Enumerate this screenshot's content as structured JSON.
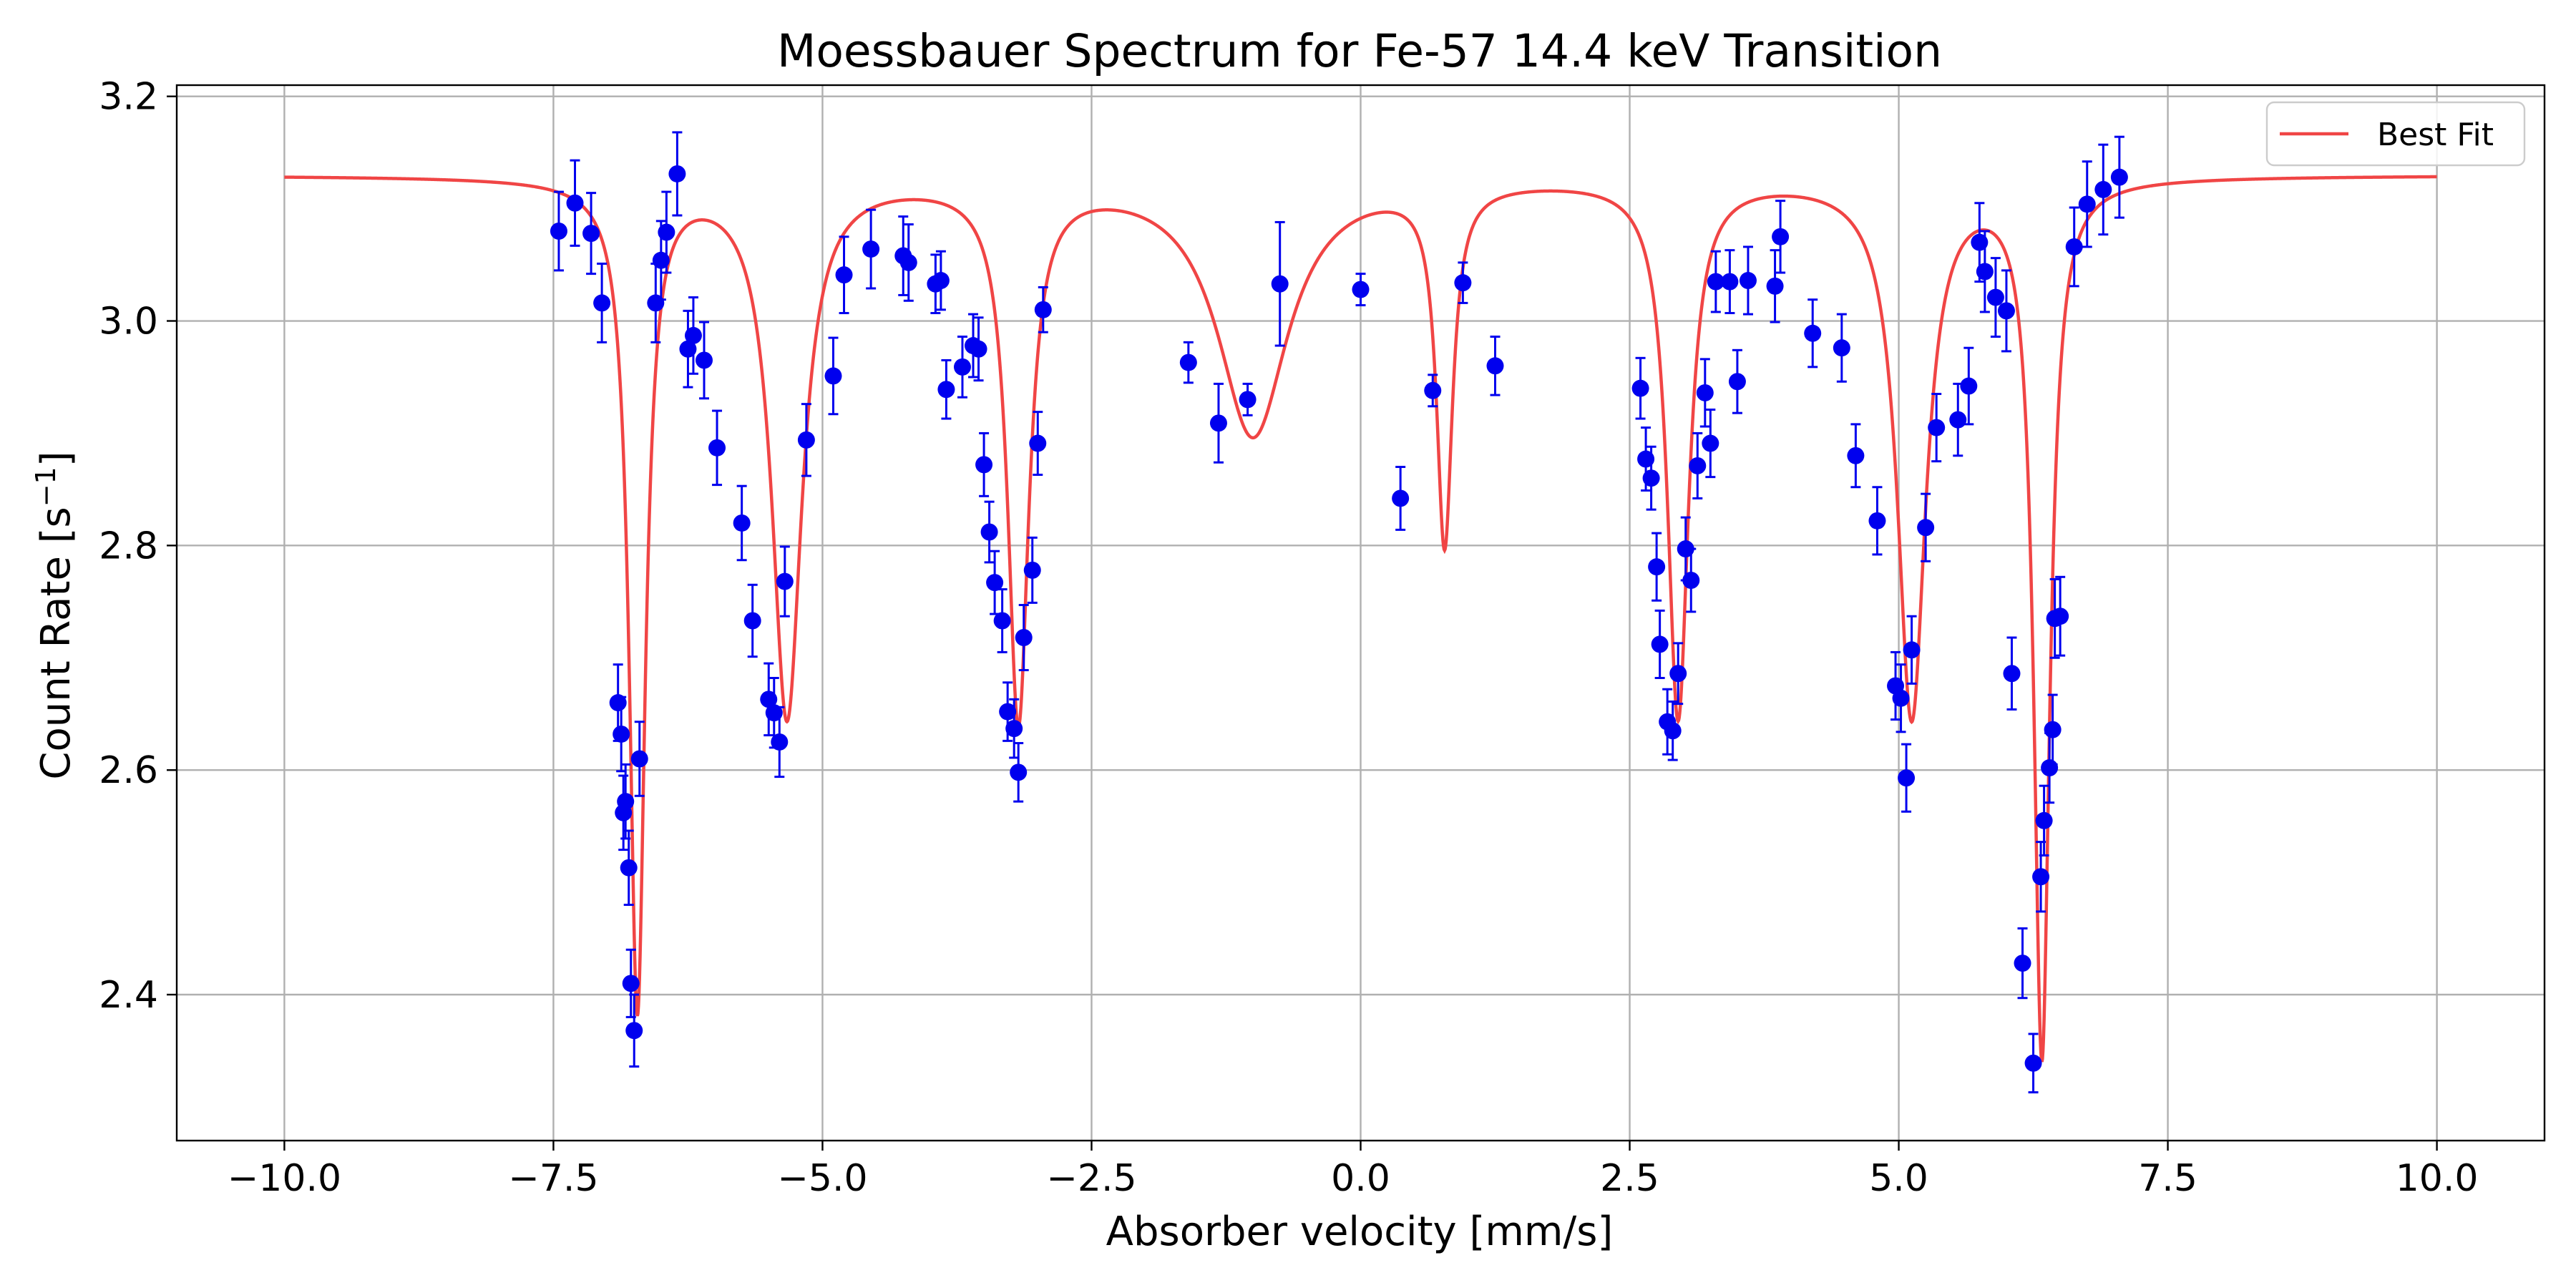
{
  "chart_data": {
    "type": "scatter",
    "title": "Moessbauer Spectrum for Fe-57 14.4 keV Transition",
    "xlabel": "Absorber velocity [mm/s]",
    "ylabel_main": "Count Rate [s",
    "ylabel_sup": "−1",
    "ylabel_end": "]",
    "xlim": [
      -11.0,
      11.0
    ],
    "ylim": [
      2.27,
      3.21
    ],
    "xticks": [
      -10.0,
      -7.5,
      -5.0,
      -2.5,
      0.0,
      2.5,
      5.0,
      7.5,
      10.0
    ],
    "xtick_labels": [
      "−10.0",
      "−7.5",
      "−5.0",
      "−2.5",
      "0.0",
      "2.5",
      "5.0",
      "7.5",
      "10.0"
    ],
    "yticks": [
      2.4,
      2.6,
      2.8,
      3.0,
      3.2
    ],
    "ytick_labels": [
      "2.4",
      "2.6",
      "2.8",
      "3.0",
      "3.2"
    ],
    "grid": true,
    "legend": {
      "placement": "top-right",
      "entries": [
        "Best Fit"
      ]
    },
    "colors": {
      "data": "#0000ee",
      "fit": "#f04545"
    },
    "fit_model": {
      "baseline": 3.13,
      "peaks": [
        {
          "center": -6.72,
          "depth": 0.74,
          "width": 0.09
        },
        {
          "center": -5.33,
          "depth": 0.48,
          "width": 0.17
        },
        {
          "center": -3.18,
          "depth": 0.48,
          "width": 0.12
        },
        {
          "center": -1.0,
          "depth": 0.23,
          "width": 0.4
        },
        {
          "center": 0.78,
          "depth": 0.32,
          "width": 0.09
        },
        {
          "center": 2.95,
          "depth": 0.48,
          "width": 0.12
        },
        {
          "center": 5.12,
          "depth": 0.48,
          "width": 0.16
        },
        {
          "center": 6.33,
          "depth": 0.78,
          "width": 0.09
        }
      ],
      "x_range": [
        -10.0,
        10.0
      ]
    },
    "series": [
      {
        "name": "",
        "x": [
          -7.45,
          -7.3,
          -7.15,
          -7.05,
          -6.9,
          -6.87,
          -6.85,
          -6.83,
          -6.8,
          -6.78,
          -6.75,
          -6.7,
          -6.55,
          -6.5,
          -6.45,
          -6.35,
          -6.25,
          -6.2,
          -6.1,
          -5.98,
          -5.75,
          -5.65,
          -5.5,
          -5.45,
          -5.4,
          -5.35,
          -5.15,
          -4.9,
          -4.8,
          -4.55,
          -4.25,
          -4.2,
          -3.95,
          -3.9,
          -3.85,
          -3.7,
          -3.6,
          -3.55,
          -3.5,
          -3.45,
          -3.4,
          -3.33,
          -3.28,
          -3.22,
          -3.18,
          -3.13,
          -3.05,
          -3.0,
          -2.95,
          -1.6,
          -1.32,
          -1.05,
          -0.75,
          0.0,
          0.37,
          0.67,
          0.95,
          1.25,
          2.6,
          2.65,
          2.7,
          2.75,
          2.78,
          2.85,
          2.9,
          2.95,
          3.02,
          3.07,
          3.13,
          3.2,
          3.25,
          3.3,
          3.43,
          3.5,
          3.6,
          3.85,
          3.9,
          4.2,
          4.47,
          4.6,
          4.8,
          4.97,
          5.02,
          5.07,
          5.12,
          5.25,
          5.35,
          5.55,
          5.65,
          5.75,
          5.8,
          5.9,
          6.0,
          6.05,
          6.15,
          6.25,
          6.32,
          6.35,
          6.4,
          6.43,
          6.45,
          6.5,
          6.63,
          6.75,
          6.9,
          7.05
        ],
        "y": [
          3.08,
          3.105,
          3.078,
          3.016,
          2.66,
          2.632,
          2.562,
          2.572,
          2.513,
          2.41,
          2.368,
          2.61,
          3.016,
          3.054,
          3.079,
          3.131,
          2.975,
          2.987,
          2.965,
          2.887,
          2.82,
          2.733,
          2.663,
          2.651,
          2.625,
          2.768,
          2.894,
          2.951,
          3.041,
          3.064,
          3.058,
          3.052,
          3.033,
          3.036,
          2.939,
          2.959,
          2.978,
          2.975,
          2.872,
          2.812,
          2.767,
          2.733,
          2.652,
          2.637,
          2.598,
          2.718,
          2.778,
          2.891,
          3.01,
          2.963,
          2.909,
          2.93,
          3.033,
          3.028,
          2.842,
          2.938,
          3.034,
          2.96,
          2.94,
          2.877,
          2.86,
          2.781,
          2.712,
          2.643,
          2.635,
          2.686,
          2.797,
          2.769,
          2.871,
          2.936,
          2.891,
          3.035,
          3.035,
          2.946,
          3.036,
          3.031,
          3.075,
          2.989,
          2.976,
          2.88,
          2.822,
          2.675,
          2.664,
          2.593,
          2.707,
          2.816,
          2.905,
          2.912,
          2.942,
          3.07,
          3.044,
          3.021,
          3.009,
          2.686,
          2.428,
          2.339,
          2.505,
          2.555,
          2.602,
          2.636,
          2.735,
          2.737,
          3.066,
          3.104,
          3.117,
          3.128
        ],
        "yerr": [
          0.035,
          0.038,
          0.036,
          0.035,
          0.034,
          0.033,
          0.033,
          0.033,
          0.033,
          0.03,
          0.032,
          0.033,
          0.035,
          0.035,
          0.036,
          0.037,
          0.034,
          0.034,
          0.034,
          0.033,
          0.033,
          0.032,
          0.032,
          0.031,
          0.031,
          0.031,
          0.032,
          0.034,
          0.034,
          0.035,
          0.035,
          0.034,
          0.026,
          0.026,
          0.026,
          0.027,
          0.028,
          0.028,
          0.028,
          0.027,
          0.028,
          0.028,
          0.026,
          0.026,
          0.026,
          0.029,
          0.029,
          0.028,
          0.02,
          0.018,
          0.035,
          0.014,
          0.055,
          0.014,
          0.028,
          0.014,
          0.018,
          0.026,
          0.027,
          0.028,
          0.028,
          0.03,
          0.03,
          0.029,
          0.026,
          0.027,
          0.028,
          0.028,
          0.029,
          0.03,
          0.03,
          0.027,
          0.028,
          0.028,
          0.03,
          0.032,
          0.032,
          0.03,
          0.03,
          0.028,
          0.03,
          0.03,
          0.03,
          0.03,
          0.03,
          0.03,
          0.03,
          0.032,
          0.034,
          0.035,
          0.036,
          0.035,
          0.036,
          0.032,
          0.031,
          0.026,
          0.031,
          0.031,
          0.031,
          0.031,
          0.035,
          0.035,
          0.035,
          0.038,
          0.04,
          0.036
        ]
      }
    ]
  }
}
